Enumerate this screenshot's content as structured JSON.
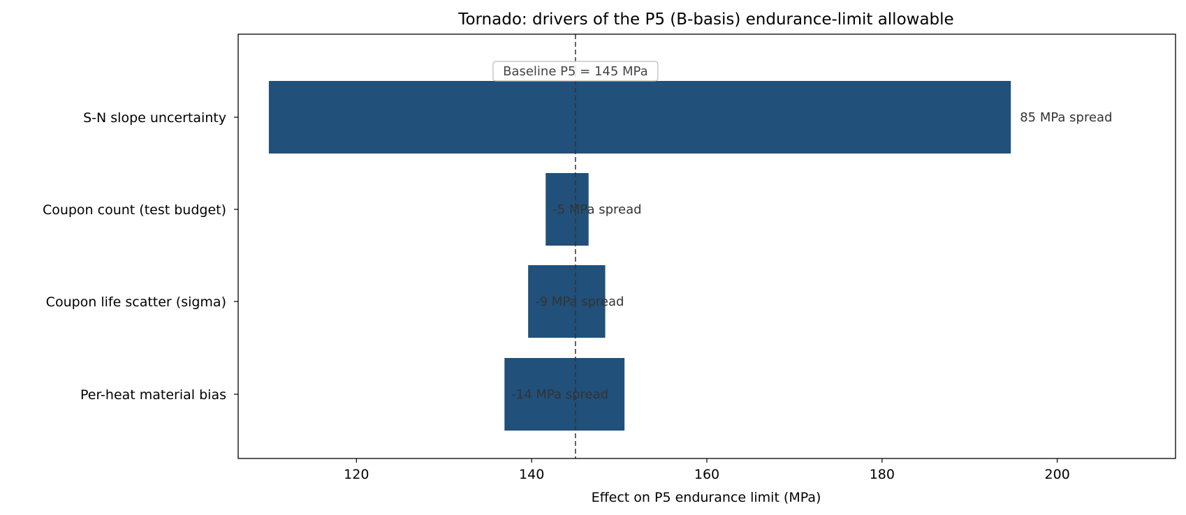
{
  "chart_data": {
    "type": "bar",
    "orientation": "horizontal",
    "variant": "tornado",
    "title": "Tornado: drivers of the P5 (B-basis) endurance-limit allowable",
    "xlabel": "Effect on P5 endurance limit (MPa)",
    "ylabel": "",
    "xlim": [
      106.5,
      213.5
    ],
    "xticks": [
      120,
      140,
      160,
      180,
      200
    ],
    "baseline": {
      "value": 145,
      "label": "Baseline P5 = 145 MPa"
    },
    "bar_color": "#21507a",
    "categories": [
      "S-N slope uncertainty",
      "Coupon count (test budget)",
      "Coupon life scatter (sigma)",
      "Per-heat material bias"
    ],
    "low": [
      110.0,
      141.6,
      139.6,
      136.9
    ],
    "high": [
      194.7,
      146.5,
      148.4,
      150.6
    ],
    "labels": [
      "85 MPa spread",
      "-5 MPa spread",
      "-9 MPa spread",
      "-14 MPa spread"
    ],
    "grid": false,
    "legend": "none"
  }
}
